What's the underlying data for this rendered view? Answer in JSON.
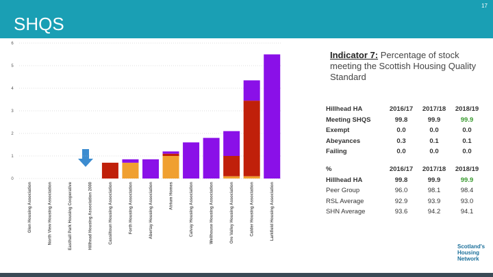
{
  "page_number": "17",
  "header": "SHQS",
  "chart_data": {
    "type": "stacked-bar",
    "categories": [
      "Glen Housing Association",
      "North View Housing Association",
      "Easthall Park Housing Cooperative",
      "Hillhead Housing Association 2000",
      "Cassiltoun Housing Association",
      "Forth Housing Association",
      "Abertay Housing Association",
      "Atrium Homes",
      "Calvay Housing Association",
      "Wellhouse Housing Association",
      "Ore Valley Housing Association",
      "Calder Housing Association",
      "Larkfield Housing Association"
    ],
    "series": [
      {
        "color": "#f0a030",
        "values": [
          0,
          0,
          0,
          0,
          0,
          0.7,
          0,
          1.0,
          0,
          0,
          0.1,
          0.1,
          0
        ]
      },
      {
        "color": "#c0200a",
        "values": [
          0,
          0,
          0,
          0,
          0.7,
          0,
          0,
          0.1,
          0,
          0,
          0.9,
          3.35,
          0
        ]
      },
      {
        "color": "#8a10e8",
        "values": [
          0,
          0,
          0,
          0,
          0,
          0.15,
          0.85,
          0.1,
          1.6,
          1.8,
          1.1,
          0.9,
          5.5
        ]
      }
    ],
    "ylim": [
      0,
      6
    ],
    "yticks": [
      0,
      1,
      2,
      3,
      4,
      5,
      6
    ],
    "grid": true
  },
  "indicator": {
    "label": "Indicator 7:",
    "text": "Percentage of stock meeting the Scottish Housing Quality Standard"
  },
  "table1": {
    "rows": [
      [
        "Hillhead HA",
        "2016/17",
        "2017/18",
        "2018/19"
      ],
      [
        "Meeting SHQS",
        "99.8",
        "99.9",
        "99.9"
      ],
      [
        "Exempt",
        "0.0",
        "0.0",
        "0.0"
      ],
      [
        "Abeyances",
        "0.3",
        "0.1",
        "0.1"
      ],
      [
        "Failing",
        "0.0",
        "0.0",
        "0.0"
      ]
    ]
  },
  "table2": {
    "rows": [
      [
        "%",
        "2016/17",
        "2017/18",
        "2018/19"
      ],
      [
        "Hillhead HA",
        "99.8",
        "99.9",
        "99.9"
      ],
      [
        "Peer Group",
        "96.0",
        "98.1",
        "98.4"
      ],
      [
        "RSL Average",
        "92.9",
        "93.9",
        "93.0"
      ],
      [
        "SHN Average",
        "93.6",
        "94.2",
        "94.1"
      ]
    ]
  },
  "logo": "Scotland's Housing Network"
}
